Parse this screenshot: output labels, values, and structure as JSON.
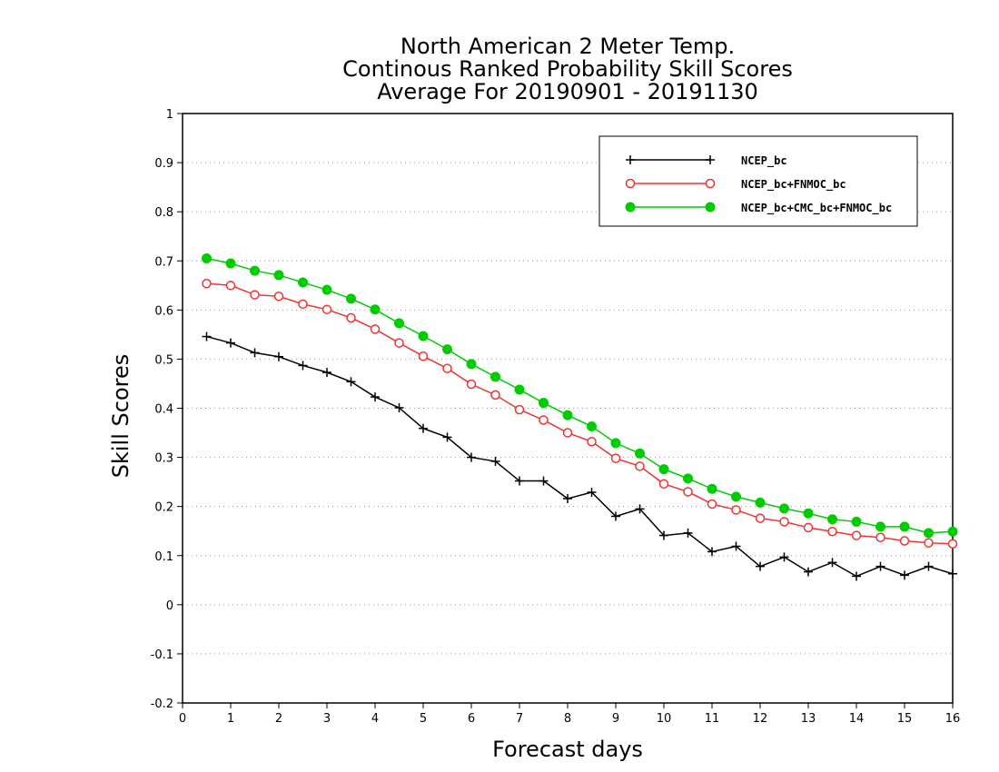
{
  "chart_data": {
    "type": "line",
    "title": [
      "North American 2 Meter Temp.",
      "Continous Ranked Probability Skill Scores",
      "Average For 20190901 - 20191130"
    ],
    "xlabel": "Forecast days",
    "ylabel": "Skill Scores",
    "xlim": [
      0,
      16
    ],
    "ylim": [
      -0.2,
      1
    ],
    "xticks": [
      "0",
      "1",
      "2",
      "3",
      "4",
      "5",
      "6",
      "7",
      "8",
      "9",
      "10",
      "11",
      "12",
      "13",
      "14",
      "15",
      "16"
    ],
    "yticks": [
      "1",
      "0.9",
      "0.8",
      "0.7",
      "0.6",
      "0.5",
      "0.4",
      "0.3",
      "0.2",
      "0.1",
      "0",
      "-0.1",
      "-0.2"
    ],
    "grid": "horizontal dotted",
    "legend_position": "top-right",
    "x": [
      0.5,
      1,
      1.5,
      2,
      2.5,
      3,
      3.5,
      4,
      4.5,
      5,
      5.5,
      6,
      6.5,
      7,
      7.5,
      8,
      8.5,
      9,
      9.5,
      10,
      10.5,
      11,
      11.5,
      12,
      12.5,
      13,
      13.5,
      14,
      14.5,
      15,
      15.5,
      16
    ],
    "series": [
      {
        "name": "NCEP_bc",
        "color": "#000000",
        "marker": "plus",
        "values": [
          0.546,
          0.533,
          0.513,
          0.505,
          0.487,
          0.473,
          0.454,
          0.423,
          0.401,
          0.359,
          0.341,
          0.3,
          0.292,
          0.252,
          0.252,
          0.216,
          0.229,
          0.18,
          0.195,
          0.141,
          0.146,
          0.108,
          0.119,
          0.078,
          0.097,
          0.067,
          0.086,
          0.058,
          0.078,
          0.06,
          0.078,
          0.063
        ]
      },
      {
        "name": "NCEP_bc+FNMOC_bc",
        "color": "#ee3333",
        "marker": "open-circle",
        "values": [
          0.654,
          0.65,
          0.631,
          0.628,
          0.612,
          0.601,
          0.584,
          0.561,
          0.533,
          0.506,
          0.481,
          0.449,
          0.427,
          0.397,
          0.376,
          0.35,
          0.332,
          0.298,
          0.282,
          0.246,
          0.23,
          0.205,
          0.193,
          0.176,
          0.169,
          0.157,
          0.149,
          0.141,
          0.137,
          0.13,
          0.126,
          0.124
        ]
      },
      {
        "name": "NCEP_bc+CMC_bc+FNMOC_bc",
        "color": "#00cc00",
        "marker": "filled-circle",
        "values": [
          0.705,
          0.695,
          0.68,
          0.671,
          0.656,
          0.641,
          0.623,
          0.601,
          0.573,
          0.547,
          0.52,
          0.49,
          0.464,
          0.438,
          0.411,
          0.386,
          0.363,
          0.329,
          0.308,
          0.276,
          0.257,
          0.236,
          0.22,
          0.208,
          0.196,
          0.186,
          0.174,
          0.169,
          0.159,
          0.159,
          0.146,
          0.149
        ]
      }
    ]
  }
}
